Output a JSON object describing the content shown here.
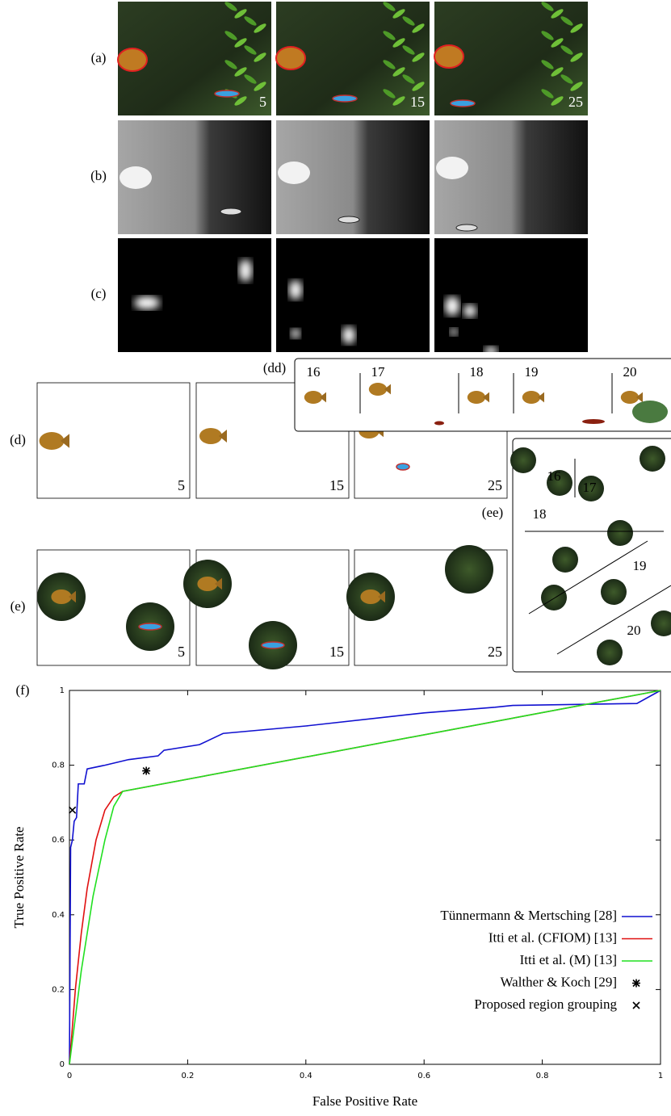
{
  "panels": {
    "row_labels": [
      "(a)",
      "(b)",
      "(c)",
      "(d)",
      "(e)",
      "(f)"
    ],
    "frames": [
      "5",
      "15",
      "25"
    ],
    "dd": {
      "label": "(dd)",
      "frames": [
        "16",
        "17",
        "18",
        "19",
        "20"
      ]
    },
    "ee": {
      "label": "(ee)",
      "frames": [
        "16",
        "17",
        "18",
        "19",
        "20"
      ]
    }
  },
  "chart_data": {
    "type": "line",
    "xlabel": "False Positive Rate",
    "ylabel": "True Positive Rate",
    "xlim": [
      0,
      1
    ],
    "ylim": [
      0,
      1
    ],
    "xticks": [
      0,
      0.2,
      0.4,
      0.6,
      0.8,
      1
    ],
    "yticks": [
      0,
      0.2,
      0.4,
      0.6,
      0.8,
      1
    ],
    "legend": "lower right",
    "series": [
      {
        "name": "Tünnermann & Mertsching [28]",
        "color": "#1010d0",
        "x": [
          0,
          0.002,
          0.005,
          0.008,
          0.012,
          0.015,
          0.025,
          0.03,
          0.06,
          0.1,
          0.15,
          0.16,
          0.22,
          0.24,
          0.26,
          0.4,
          0.6,
          0.72,
          0.75,
          0.96,
          1
        ],
        "values": [
          0,
          0.58,
          0.6,
          0.65,
          0.66,
          0.75,
          0.75,
          0.79,
          0.8,
          0.815,
          0.825,
          0.84,
          0.855,
          0.87,
          0.885,
          0.905,
          0.94,
          0.955,
          0.96,
          0.965,
          1
        ]
      },
      {
        "name": "Itti et al. (CFIOM) [13]",
        "color": "#e01010",
        "x": [
          0,
          0.01,
          0.02,
          0.03,
          0.045,
          0.06,
          0.075,
          0.09,
          1
        ],
        "values": [
          0,
          0.2,
          0.35,
          0.47,
          0.6,
          0.68,
          0.715,
          0.73,
          1
        ]
      },
      {
        "name": "Itti et al. (M) [13]",
        "color": "#20e020",
        "x": [
          0,
          0.02,
          0.04,
          0.06,
          0.075,
          0.09,
          1
        ],
        "values": [
          0,
          0.25,
          0.45,
          0.6,
          0.69,
          0.73,
          1
        ]
      },
      {
        "name": "Walther & Koch [29]",
        "color": "#000000",
        "marker": "asterisk",
        "x": [
          0.13
        ],
        "values": [
          0.785
        ]
      },
      {
        "name": "Proposed region grouping",
        "color": "#000000",
        "marker": "cross",
        "x": [
          0.005
        ],
        "values": [
          0.68
        ]
      }
    ]
  }
}
